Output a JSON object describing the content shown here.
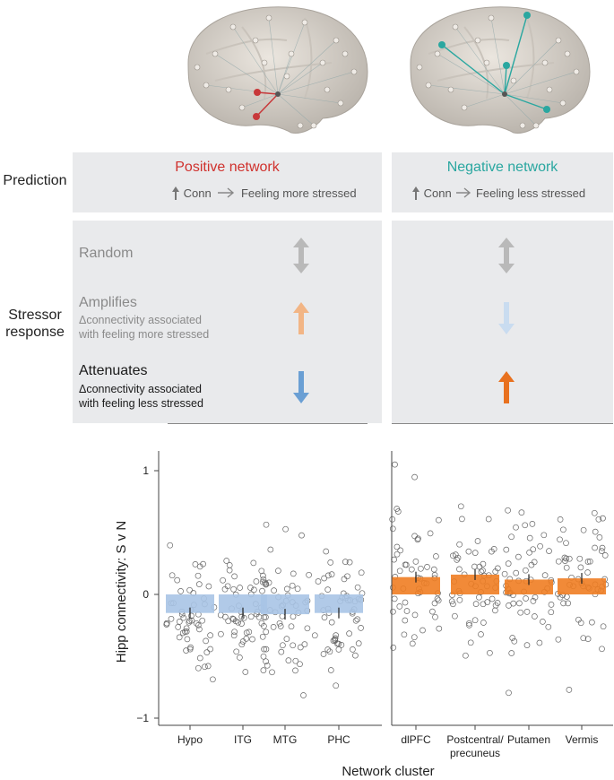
{
  "colors": {
    "positive_title": "#d0312d",
    "negative_title": "#2aa7a0",
    "positive_bar": "#a9c4e6",
    "negative_bar": "#ef7d22",
    "arrow_random": "#b9b9b9",
    "arrow_amplify_pos": "#f2b585",
    "arrow_attenuate_pos": "#6a9fd4",
    "arrow_amplify_neg": "#c9dcf0",
    "arrow_attenuate_neg": "#e8711f"
  },
  "header": {
    "prediction_label": "Prediction",
    "stressor_label_line1": "Stressor",
    "stressor_label_line2": "response"
  },
  "positive": {
    "title": "Positive network",
    "pred_conn": "Conn",
    "pred_effect": "Feeling more stressed"
  },
  "negative": {
    "title": "Negative network",
    "pred_conn": "Conn",
    "pred_effect": "Feeling less stressed"
  },
  "responses": {
    "random": "Random",
    "amplifies": "Amplifies",
    "amplifies_sub1": "Δconnectivity associated",
    "amplifies_sub2": "with feeling more stressed",
    "attenuates": "Attenuates",
    "attenuates_sub1": "Δconnectivity associated",
    "attenuates_sub2": "with feeling less stressed"
  },
  "chart_data": {
    "type": "bar",
    "ylabel": "Hipp connectivity: S v N",
    "xlabel": "Network cluster",
    "ylim": [
      -1.05,
      1.1
    ],
    "yticks": [
      -1,
      0,
      1
    ],
    "yticklabels": [
      "−1",
      "0",
      "1"
    ],
    "groups": [
      {
        "name": "Positive network",
        "categories": [
          "Hypo",
          "ITG",
          "MTG",
          "PHC"
        ],
        "values": [
          -0.15,
          -0.15,
          -0.16,
          -0.15
        ]
      },
      {
        "name": "Negative network",
        "categories": [
          "dlPFC",
          "Postcentral/\nprecuneus",
          "Putamen",
          "Vermis"
        ],
        "values": [
          0.14,
          0.16,
          0.12,
          0.13
        ]
      }
    ],
    "category_labels": [
      "Hypo",
      "ITG",
      "MTG",
      "PHC",
      "dlPFC",
      "Postcentral/",
      "precuneus",
      "Putamen",
      "Vermis"
    ]
  }
}
